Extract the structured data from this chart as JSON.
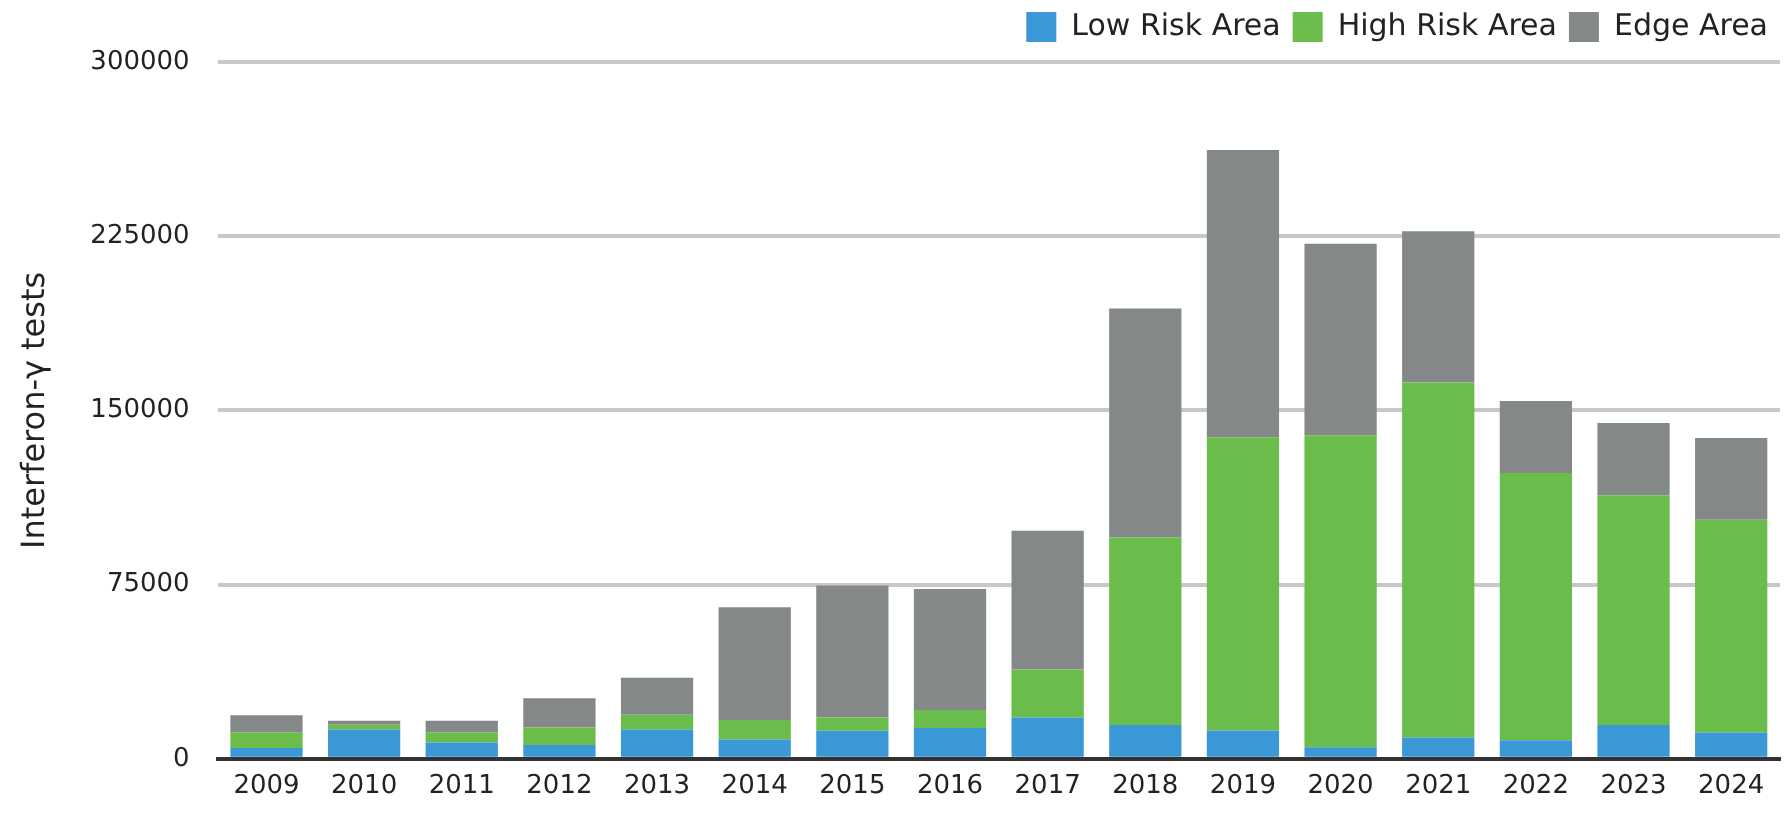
{
  "chart_data": {
    "type": "bar",
    "stacked": true,
    "ylabel": "Interferon-γ tests",
    "categories": [
      "2009",
      "2010",
      "2011",
      "2012",
      "2013",
      "2014",
      "2015",
      "2016",
      "2017",
      "2018",
      "2019",
      "2020",
      "2021",
      "2022",
      "2023",
      "2024"
    ],
    "series": [
      {
        "name": "Low Risk Area",
        "color": "#3a98d6",
        "values": [
          4700,
          12600,
          7000,
          5900,
          12600,
          8300,
          12100,
          13300,
          17800,
          14500,
          12200,
          5000,
          9200,
          8000,
          14500,
          11300
        ]
      },
      {
        "name": "High Risk Area",
        "color": "#6abd4b",
        "values": [
          6700,
          2100,
          4400,
          7600,
          6400,
          8400,
          5700,
          7700,
          20700,
          80800,
          126200,
          134300,
          152800,
          115000,
          99000,
          91600
        ]
      },
      {
        "name": "Edge Area",
        "color": "#858889",
        "values": [
          7400,
          1700,
          5000,
          12600,
          15900,
          48600,
          56800,
          52100,
          59700,
          98600,
          123700,
          82400,
          65100,
          31100,
          31100,
          35200
        ]
      }
    ],
    "ylim": [
      0,
      300000
    ],
    "yticks": [
      0,
      75000,
      150000,
      225000,
      300000
    ],
    "grid": "y",
    "legend": "top right"
  }
}
